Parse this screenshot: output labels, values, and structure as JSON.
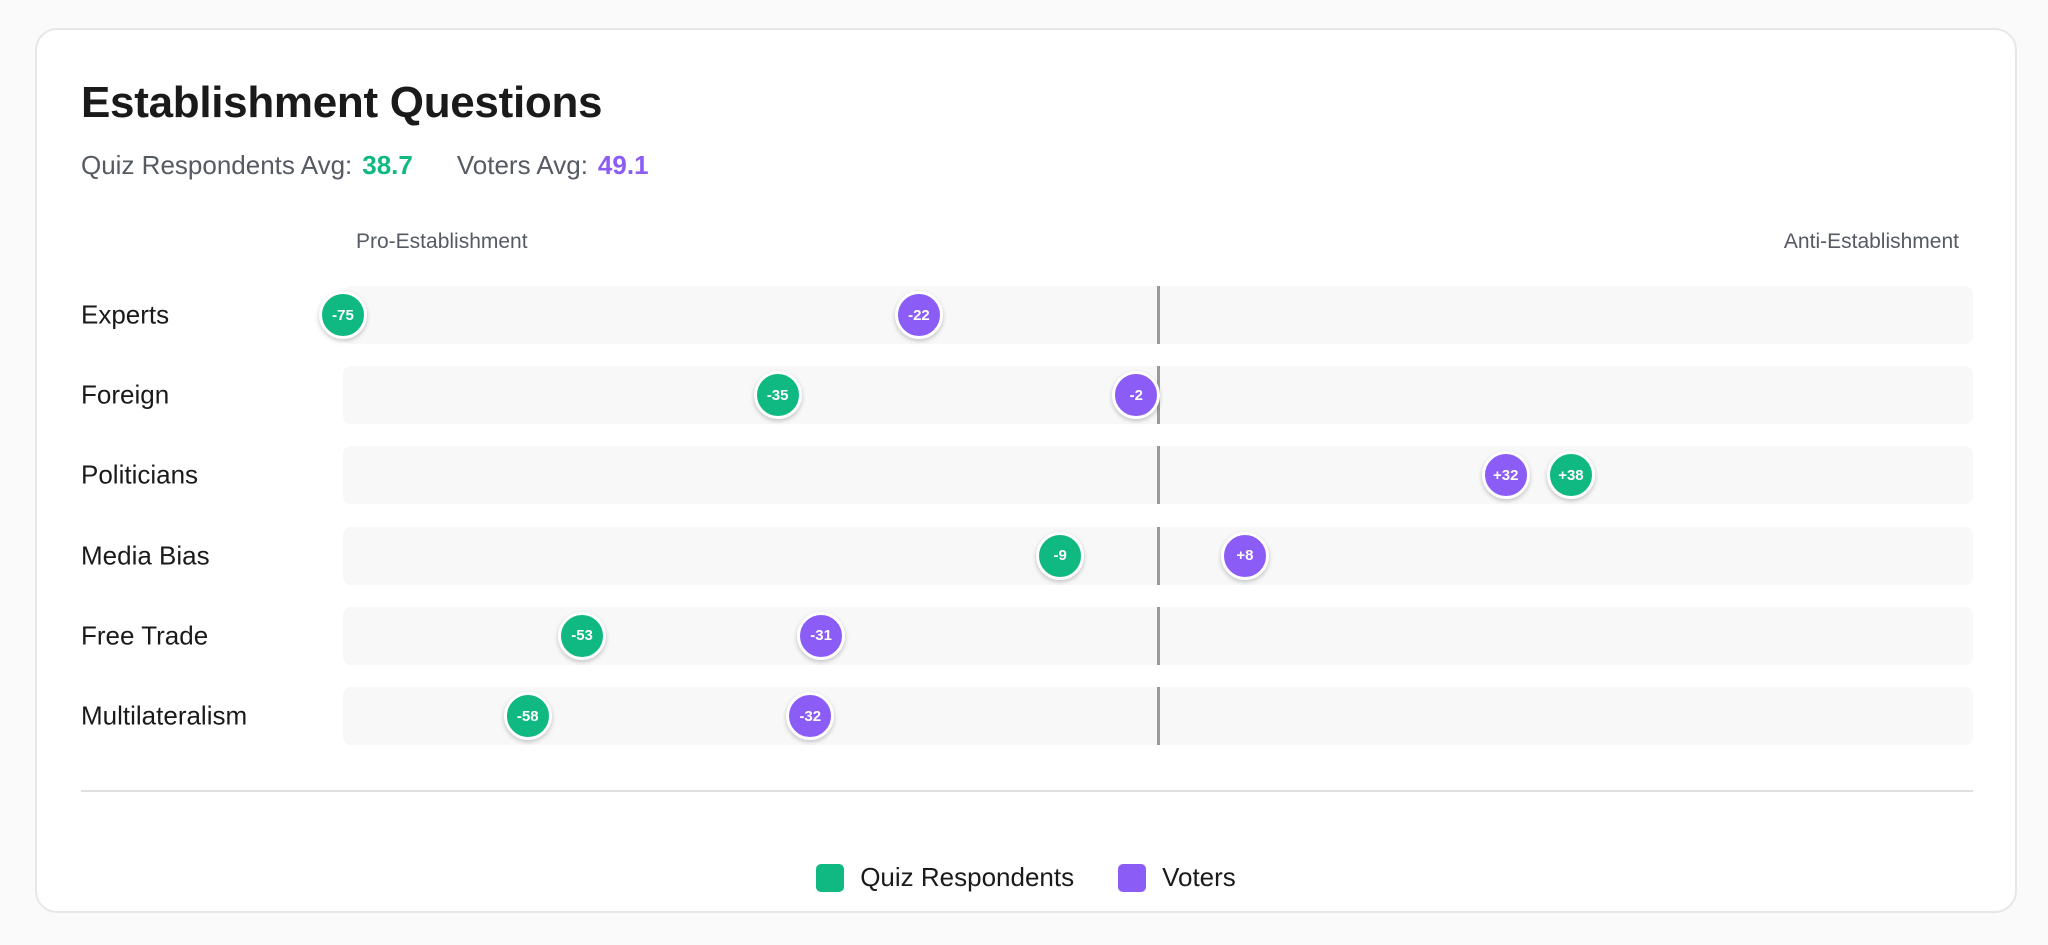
{
  "chart_data": {
    "type": "scatter",
    "title": "Establishment Questions",
    "averages": {
      "quiz_label": "Quiz Respondents Avg:",
      "quiz_value": "38.7",
      "voters_label": "Voters Avg:",
      "voters_value": "49.1"
    },
    "axis": {
      "left_label": "Pro-Establishment",
      "right_label": "Anti-Establishment",
      "xlim": [
        -75,
        75
      ],
      "center": 0
    },
    "categories": [
      "Experts",
      "Foreign",
      "Politicians",
      "Media Bias",
      "Free Trade",
      "Multilateralism"
    ],
    "series": [
      {
        "name": "Quiz Respondents",
        "color": "#10b981",
        "values": [
          -75,
          -35,
          38,
          -9,
          -53,
          -58
        ],
        "labels": [
          "-75",
          "-35",
          "+38",
          "-9",
          "-53",
          "-58"
        ]
      },
      {
        "name": "Voters",
        "color": "#8b5cf6",
        "values": [
          -22,
          -2,
          32,
          8,
          -31,
          -32
        ],
        "labels": [
          "-22",
          "-2",
          "+32",
          "+8",
          "-31",
          "-32"
        ]
      }
    ],
    "legend_position": "bottom-center"
  }
}
